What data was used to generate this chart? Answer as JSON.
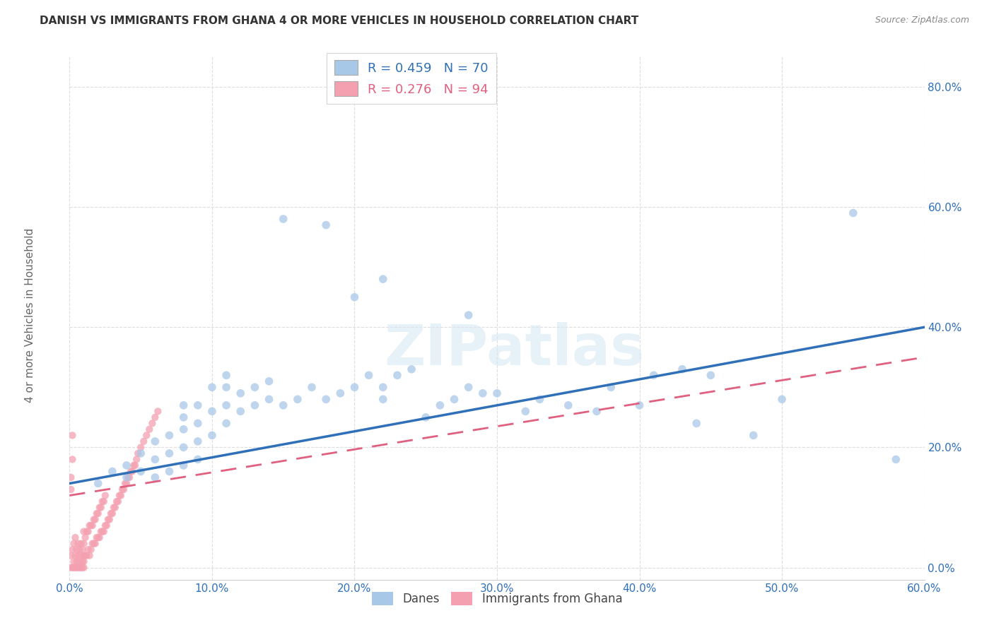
{
  "title": "DANISH VS IMMIGRANTS FROM GHANA 4 OR MORE VEHICLES IN HOUSEHOLD CORRELATION CHART",
  "source": "Source: ZipAtlas.com",
  "ylabel": "4 or more Vehicles in Household",
  "x_ticks": [
    0.0,
    0.1,
    0.2,
    0.3,
    0.4,
    0.5,
    0.6
  ],
  "y_ticks": [
    0.0,
    0.2,
    0.4,
    0.6,
    0.8
  ],
  "x_tick_labels": [
    "0.0%",
    "10.0%",
    "20.0%",
    "30.0%",
    "40.0%",
    "50.0%",
    "60.0%"
  ],
  "y_tick_labels": [
    "0.0%",
    "20.0%",
    "40.0%",
    "60.0%",
    "80.0%"
  ],
  "x_min": 0.0,
  "x_max": 0.6,
  "y_min": -0.02,
  "y_max": 0.85,
  "legend_label_danes": "Danes",
  "legend_label_ghana": "Immigrants from Ghana",
  "r_danes": "0.459",
  "n_danes": "70",
  "r_ghana": "0.276",
  "n_ghana": "94",
  "blue_dot_color": "#a8c8e8",
  "pink_dot_color": "#f4a0b0",
  "blue_line_color": "#3070b8",
  "pink_line_color": "#e06080",
  "watermark": "ZIPatlas",
  "danes_x": [
    0.02,
    0.03,
    0.04,
    0.04,
    0.05,
    0.05,
    0.06,
    0.06,
    0.06,
    0.07,
    0.07,
    0.07,
    0.08,
    0.08,
    0.08,
    0.08,
    0.08,
    0.09,
    0.09,
    0.09,
    0.09,
    0.1,
    0.1,
    0.1,
    0.11,
    0.11,
    0.11,
    0.11,
    0.12,
    0.12,
    0.13,
    0.13,
    0.14,
    0.14,
    0.15,
    0.16,
    0.17,
    0.18,
    0.19,
    0.2,
    0.21,
    0.22,
    0.22,
    0.23,
    0.24,
    0.25,
    0.26,
    0.27,
    0.28,
    0.29,
    0.3,
    0.32,
    0.33,
    0.35,
    0.37,
    0.38,
    0.4,
    0.41,
    0.43,
    0.44,
    0.45,
    0.48,
    0.5,
    0.55,
    0.58,
    0.15,
    0.18,
    0.2,
    0.22,
    0.28
  ],
  "danes_y": [
    0.14,
    0.16,
    0.17,
    0.15,
    0.16,
    0.19,
    0.15,
    0.18,
    0.21,
    0.16,
    0.19,
    0.22,
    0.17,
    0.2,
    0.23,
    0.25,
    0.27,
    0.18,
    0.21,
    0.24,
    0.27,
    0.22,
    0.26,
    0.3,
    0.24,
    0.27,
    0.3,
    0.32,
    0.26,
    0.29,
    0.27,
    0.3,
    0.28,
    0.31,
    0.27,
    0.28,
    0.3,
    0.28,
    0.29,
    0.3,
    0.32,
    0.28,
    0.3,
    0.32,
    0.33,
    0.25,
    0.27,
    0.28,
    0.3,
    0.29,
    0.29,
    0.26,
    0.28,
    0.27,
    0.26,
    0.3,
    0.27,
    0.32,
    0.33,
    0.24,
    0.32,
    0.22,
    0.28,
    0.59,
    0.18,
    0.58,
    0.57,
    0.45,
    0.48,
    0.42
  ],
  "ghana_x": [
    0.001,
    0.002,
    0.003,
    0.003,
    0.004,
    0.004,
    0.005,
    0.005,
    0.006,
    0.006,
    0.007,
    0.007,
    0.008,
    0.008,
    0.009,
    0.009,
    0.01,
    0.01,
    0.01,
    0.01,
    0.011,
    0.011,
    0.012,
    0.012,
    0.013,
    0.013,
    0.014,
    0.014,
    0.015,
    0.015,
    0.016,
    0.016,
    0.017,
    0.017,
    0.018,
    0.018,
    0.019,
    0.019,
    0.02,
    0.02,
    0.021,
    0.021,
    0.022,
    0.022,
    0.023,
    0.023,
    0.024,
    0.024,
    0.025,
    0.025,
    0.026,
    0.027,
    0.028,
    0.029,
    0.03,
    0.031,
    0.032,
    0.033,
    0.034,
    0.035,
    0.036,
    0.037,
    0.038,
    0.039,
    0.04,
    0.041,
    0.042,
    0.043,
    0.044,
    0.045,
    0.046,
    0.047,
    0.048,
    0.05,
    0.052,
    0.054,
    0.056,
    0.058,
    0.06,
    0.062,
    0.001,
    0.002,
    0.003,
    0.004,
    0.005,
    0.006,
    0.007,
    0.008,
    0.009,
    0.01,
    0.001,
    0.002,
    0.001,
    0.002
  ],
  "ghana_y": [
    0.02,
    0.03,
    0.01,
    0.04,
    0.02,
    0.05,
    0.01,
    0.03,
    0.02,
    0.04,
    0.01,
    0.03,
    0.02,
    0.04,
    0.01,
    0.03,
    0.02,
    0.04,
    0.01,
    0.06,
    0.02,
    0.05,
    0.02,
    0.06,
    0.03,
    0.06,
    0.02,
    0.07,
    0.03,
    0.07,
    0.04,
    0.07,
    0.04,
    0.08,
    0.04,
    0.08,
    0.05,
    0.09,
    0.05,
    0.09,
    0.05,
    0.1,
    0.06,
    0.1,
    0.06,
    0.11,
    0.06,
    0.11,
    0.07,
    0.12,
    0.07,
    0.08,
    0.08,
    0.09,
    0.09,
    0.1,
    0.1,
    0.11,
    0.11,
    0.12,
    0.12,
    0.13,
    0.13,
    0.14,
    0.14,
    0.15,
    0.15,
    0.16,
    0.16,
    0.17,
    0.17,
    0.18,
    0.19,
    0.2,
    0.21,
    0.22,
    0.23,
    0.24,
    0.25,
    0.26,
    0.0,
    0.0,
    0.0,
    0.0,
    0.0,
    0.0,
    0.0,
    0.0,
    0.0,
    0.0,
    0.15,
    0.22,
    0.13,
    0.18
  ]
}
